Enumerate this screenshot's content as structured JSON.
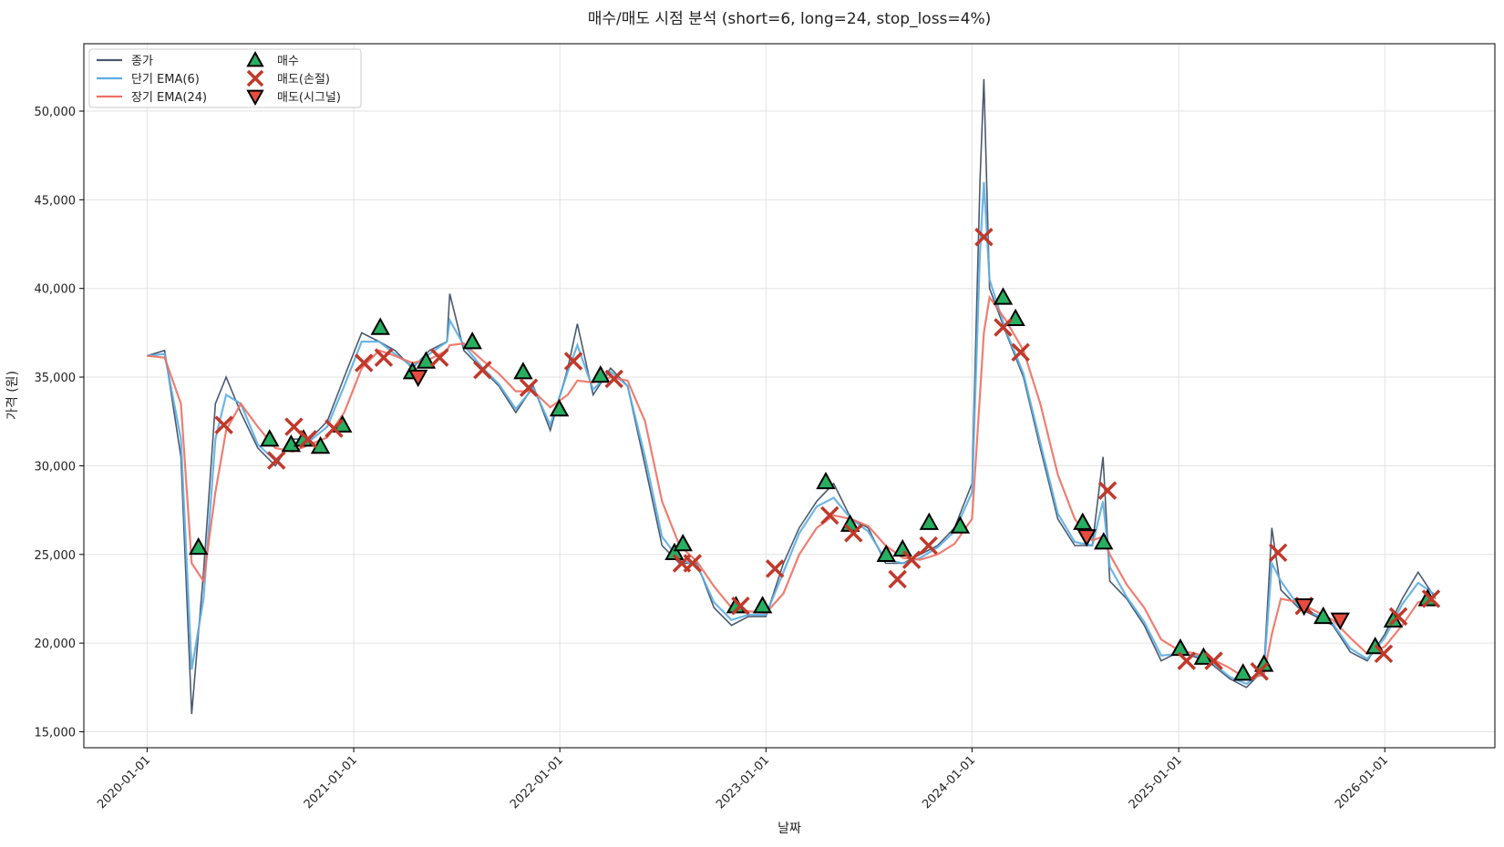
{
  "chart_data": {
    "type": "line",
    "title": "매수/매도 시점 분석 (short=6, long=24, stop_loss=4%)",
    "xlabel": "날짜",
    "ylabel": "가격 (원)",
    "grid": true,
    "legend": "upper left",
    "xlim": [
      "2019-09-11",
      "2026-07-15"
    ],
    "xticks": [
      "2020-01-01",
      "2021-01-01",
      "2022-01-01",
      "2023-01-01",
      "2024-01-01",
      "2025-01-01",
      "2026-01-01"
    ],
    "ylim": [
      14100,
      53800
    ],
    "yticks": [
      {
        "value": 15000,
        "label": "15,000"
      },
      {
        "value": 20000,
        "label": "20,000"
      },
      {
        "value": 25000,
        "label": "25,000"
      },
      {
        "value": 30000,
        "label": "30,000"
      },
      {
        "value": 35000,
        "label": "35,000"
      },
      {
        "value": 40000,
        "label": "40,000"
      },
      {
        "value": 45000,
        "label": "45,000"
      },
      {
        "value": 50000,
        "label": "50,000"
      }
    ],
    "x": [
      "2020-01-01",
      "2020-02-01",
      "2020-03-01",
      "2020-03-20",
      "2020-04-10",
      "2020-05-01",
      "2020-05-20",
      "2020-06-15",
      "2020-07-15",
      "2020-08-15",
      "2020-09-15",
      "2020-10-15",
      "2020-11-15",
      "2020-12-15",
      "2021-01-15",
      "2021-02-15",
      "2021-03-15",
      "2021-04-15",
      "2021-05-15",
      "2021-06-15",
      "2021-06-20",
      "2021-07-15",
      "2021-08-15",
      "2021-09-15",
      "2021-10-15",
      "2021-11-15",
      "2021-12-15",
      "2022-01-15",
      "2022-02-01",
      "2022-03-01",
      "2022-04-01",
      "2022-05-01",
      "2022-06-01",
      "2022-07-01",
      "2022-08-01",
      "2022-09-01",
      "2022-10-01",
      "2022-11-01",
      "2022-12-01",
      "2023-01-01",
      "2023-02-01",
      "2023-03-01",
      "2023-04-01",
      "2023-05-01",
      "2023-06-01",
      "2023-07-01",
      "2023-08-01",
      "2023-09-01",
      "2023-10-01",
      "2023-11-01",
      "2023-12-01",
      "2024-01-01",
      "2024-01-15",
      "2024-01-22",
      "2024-02-01",
      "2024-03-01",
      "2024-04-01",
      "2024-05-01",
      "2024-06-01",
      "2024-07-01",
      "2024-08-01",
      "2024-08-20",
      "2024-09-01",
      "2024-10-01",
      "2024-11-01",
      "2024-12-01",
      "2025-01-01",
      "2025-02-01",
      "2025-03-01",
      "2025-04-01",
      "2025-05-01",
      "2025-06-01",
      "2025-06-15",
      "2025-07-01",
      "2025-08-01",
      "2025-09-01",
      "2025-10-01",
      "2025-11-01",
      "2025-12-01",
      "2026-01-01",
      "2026-02-01",
      "2026-03-01",
      "2026-04-01"
    ],
    "series": [
      {
        "name": "종가",
        "color": "#4a5a6e",
        "values": [
          36200,
          36500,
          30500,
          16000,
          24000,
          33500,
          35000,
          33000,
          31000,
          30000,
          31500,
          31500,
          32500,
          35000,
          37500,
          37000,
          36500,
          35500,
          36500,
          37000,
          39700,
          36500,
          35500,
          34500,
          33000,
          34500,
          32000,
          35500,
          38000,
          34000,
          35500,
          34500,
          30000,
          25500,
          24500,
          24500,
          22000,
          21000,
          21500,
          21500,
          24500,
          26500,
          28000,
          29000,
          27000,
          26500,
          24500,
          24500,
          25000,
          25500,
          26500,
          29000,
          46000,
          51800,
          40000,
          37500,
          35000,
          31000,
          27000,
          25500,
          25500,
          30500,
          23500,
          22500,
          21000,
          19000,
          19500,
          19200,
          18800,
          18000,
          17500,
          18500,
          26500,
          23000,
          22000,
          21500,
          21000,
          19500,
          19000,
          20500,
          22500,
          24000,
          22500
        ]
      },
      {
        "name": "단기 EMA(6)",
        "color": "#5dade2",
        "values": [
          36200,
          36300,
          31500,
          18500,
          22500,
          31500,
          34000,
          33500,
          31200,
          30300,
          31300,
          31400,
          32200,
          34500,
          37000,
          37000,
          36300,
          35600,
          36300,
          37000,
          38200,
          36800,
          35600,
          34600,
          33200,
          34400,
          32300,
          35300,
          36800,
          34300,
          35300,
          34500,
          30500,
          26000,
          24700,
          24400,
          22300,
          21300,
          21600,
          21600,
          24000,
          26200,
          27700,
          28200,
          27000,
          26300,
          24700,
          24500,
          24800,
          25400,
          26300,
          28500,
          42000,
          46000,
          40500,
          37600,
          35200,
          31300,
          27300,
          25700,
          25500,
          28000,
          24300,
          22600,
          21200,
          19300,
          19400,
          19300,
          18900,
          18100,
          17700,
          18400,
          24500,
          23500,
          22100,
          21600,
          21100,
          19700,
          19100,
          20300,
          22200,
          23400,
          22700
        ]
      },
      {
        "name": "장기 EMA(24)",
        "color": "#ec7063",
        "values": [
          36200,
          36100,
          33500,
          24500,
          23500,
          28500,
          32000,
          33500,
          32200,
          31000,
          30800,
          31200,
          31600,
          33000,
          35500,
          36500,
          36200,
          35800,
          36000,
          36500,
          36800,
          36900,
          36000,
          35200,
          34200,
          34200,
          33300,
          34000,
          34800,
          34700,
          35000,
          34800,
          32500,
          28000,
          25500,
          24600,
          23200,
          22000,
          21800,
          21700,
          22800,
          25000,
          26500,
          27200,
          27000,
          26600,
          25500,
          24800,
          24700,
          25000,
          25600,
          27000,
          34000,
          37500,
          39500,
          38200,
          36500,
          33500,
          29500,
          27000,
          25800,
          26000,
          25000,
          23300,
          22000,
          20200,
          19600,
          19400,
          19100,
          18600,
          18000,
          18200,
          20500,
          22500,
          22300,
          21800,
          21300,
          20300,
          19400,
          19800,
          21000,
          22300,
          22600
        ]
      },
      {
        "name": "매수",
        "type": "scatter",
        "marker": "triangle-up",
        "color": "#27ae60",
        "x": [
          "2020-04-01",
          "2020-08-05",
          "2020-09-12",
          "2020-10-04",
          "2020-11-03",
          "2020-12-12",
          "2021-02-17",
          "2021-04-15",
          "2021-05-09",
          "2021-07-30",
          "2021-10-28",
          "2021-12-31",
          "2022-03-14",
          "2022-07-23",
          "2022-08-07",
          "2022-11-09",
          "2022-12-26",
          "2023-04-17",
          "2023-05-30",
          "2023-08-02",
          "2023-08-31",
          "2023-10-17",
          "2023-12-11",
          "2024-02-25",
          "2024-03-18",
          "2024-07-15",
          "2024-08-21",
          "2025-01-04",
          "2025-02-14",
          "2025-04-25",
          "2025-06-01",
          "2025-09-14",
          "2025-12-15",
          "2026-01-16",
          "2026-03-18"
        ],
        "values": [
          25400,
          31500,
          31200,
          31500,
          31100,
          32300,
          37800,
          35300,
          35900,
          37000,
          35300,
          33200,
          35100,
          25100,
          25600,
          22100,
          22100,
          29100,
          26700,
          25000,
          25300,
          26800,
          26600,
          39500,
          38300,
          26800,
          25700,
          19700,
          19200,
          18300,
          18800,
          21500,
          19800,
          21300,
          22500
        ]
      },
      {
        "name": "매도(손절)",
        "type": "scatter",
        "marker": "x",
        "color": "#c0392b",
        "x": [
          "2020-05-16",
          "2020-08-17",
          "2020-09-17",
          "2020-10-12",
          "2020-11-27",
          "2021-01-19",
          "2021-02-23",
          "2021-06-02",
          "2021-08-17",
          "2021-11-07",
          "2022-01-25",
          "2022-04-07",
          "2022-08-05",
          "2022-08-24",
          "2022-11-17",
          "2023-01-17",
          "2023-04-24",
          "2023-06-05",
          "2023-08-22",
          "2023-09-16",
          "2023-10-16",
          "2024-01-22",
          "2024-02-25",
          "2024-03-27",
          "2024-08-28",
          "2025-01-15",
          "2025-03-04",
          "2025-05-24",
          "2025-06-26",
          "2025-08-11",
          "2025-12-30",
          "2026-01-25",
          "2026-03-24"
        ],
        "values": [
          32300,
          30300,
          32200,
          31500,
          32100,
          35800,
          36100,
          36100,
          35400,
          34400,
          35900,
          34900,
          24500,
          24500,
          22100,
          24200,
          27200,
          26200,
          23600,
          24700,
          25500,
          42900,
          37800,
          36400,
          28600,
          19000,
          19000,
          18400,
          25100,
          22100,
          19400,
          21500,
          22500
        ]
      },
      {
        "name": "매도(시그널)",
        "type": "scatter",
        "marker": "triangle-down",
        "color": "#e74c3c",
        "x": [
          "2021-04-25",
          "2024-07-22",
          "2025-08-11",
          "2025-10-14"
        ],
        "values": [
          35000,
          26000,
          22100,
          21300
        ]
      }
    ]
  }
}
